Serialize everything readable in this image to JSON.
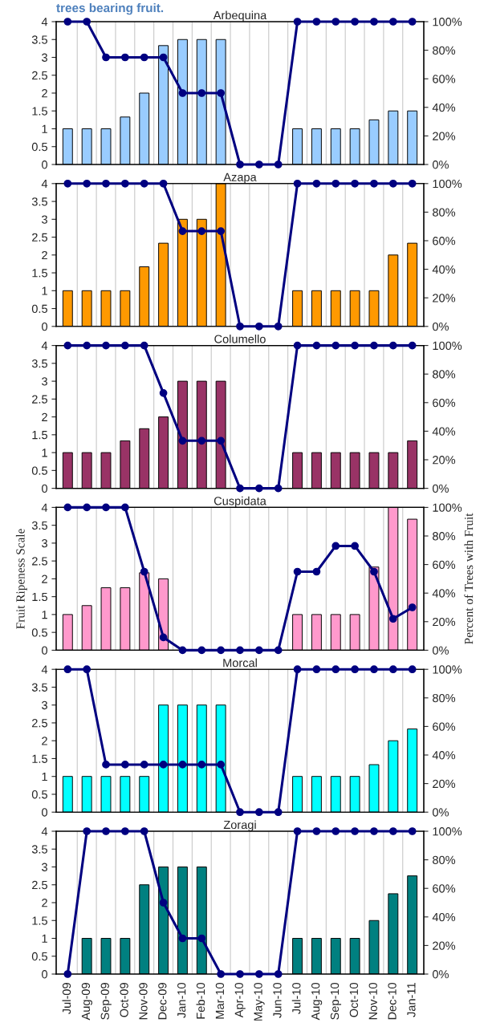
{
  "chart_data": [
    {
      "type": "bar",
      "title": "Arbequina",
      "annotations": [
        "trees bearing fruit."
      ],
      "tick_labels": "y",
      "grid": "x",
      "categories": [
        null,
        null,
        null,
        null,
        null,
        null,
        null,
        null,
        null,
        null,
        null,
        null,
        null,
        null,
        null,
        null,
        null,
        null,
        null
      ],
      "ylim": [
        0,
        4
      ],
      "yticks": [
        0,
        0.5,
        1,
        1.5,
        2,
        2.5,
        3,
        3.5,
        4
      ],
      "y2lim": [
        0,
        100
      ],
      "y2ticks": [
        {
          "value": 0,
          "label": "0%"
        },
        {
          "value": 20,
          "label": "20%"
        },
        {
          "value": 40,
          "label": "40%"
        },
        {
          "value": 60,
          "label": "60%"
        },
        {
          "value": 80,
          "label": "80%"
        },
        {
          "value": 100,
          "label": "100%"
        }
      ],
      "series": [
        {
          "type": "bar",
          "color": "#99ccff",
          "values": [
            1,
            1,
            1,
            1.33,
            2,
            3.33,
            3.5,
            3.5,
            3.5,
            null,
            null,
            null,
            1,
            1,
            1,
            1,
            1.25,
            1.5,
            1.5
          ]
        },
        {
          "type": "line",
          "axis": "y2",
          "color": "#000080",
          "marker": "circle",
          "line_style": "solid",
          "values": [
            100,
            100,
            75,
            75,
            75,
            75,
            50,
            50,
            50,
            0,
            0,
            0,
            100,
            100,
            100,
            100,
            100,
            100,
            100
          ]
        }
      ]
    },
    {
      "type": "bar",
      "title": "Azapa",
      "tick_labels": "y",
      "grid": "x",
      "categories": [
        null,
        null,
        null,
        null,
        null,
        null,
        null,
        null,
        null,
        null,
        null,
        null,
        null,
        null,
        null,
        null,
        null,
        null,
        null
      ],
      "ylim": [
        0,
        4
      ],
      "yticks": [
        0,
        0.5,
        1,
        1.5,
        2,
        2.5,
        3,
        3.5,
        4
      ],
      "y2lim": [
        0,
        100
      ],
      "y2ticks": [
        {
          "value": 0,
          "label": "0%"
        },
        {
          "value": 20,
          "label": "20%"
        },
        {
          "value": 40,
          "label": "40%"
        },
        {
          "value": 60,
          "label": "60%"
        },
        {
          "value": 80,
          "label": "80%"
        },
        {
          "value": 100,
          "label": "100%"
        }
      ],
      "series": [
        {
          "type": "bar",
          "color": "#ff9900",
          "values": [
            1,
            1,
            1,
            1,
            1.67,
            2.33,
            3,
            3,
            4,
            null,
            null,
            null,
            1,
            1,
            1,
            1,
            1,
            2,
            2.33
          ]
        },
        {
          "type": "line",
          "axis": "y2",
          "color": "#000080",
          "marker": "circle",
          "line_style": "solid",
          "values": [
            100,
            100,
            100,
            100,
            100,
            100,
            66.7,
            66.7,
            66.7,
            0,
            0,
            0,
            100,
            100,
            100,
            100,
            100,
            100,
            100
          ]
        }
      ]
    },
    {
      "type": "bar",
      "title": "Columello",
      "tick_labels": "y",
      "grid": "x",
      "categories": [
        null,
        null,
        null,
        null,
        null,
        null,
        null,
        null,
        null,
        null,
        null,
        null,
        null,
        null,
        null,
        null,
        null,
        null,
        null
      ],
      "ylim": [
        0,
        4
      ],
      "yticks": [
        0,
        0.5,
        1,
        1.5,
        2,
        2.5,
        3,
        3.5,
        4
      ],
      "y2lim": [
        0,
        100
      ],
      "y2ticks": [
        {
          "value": 0,
          "label": "0%"
        },
        {
          "value": 20,
          "label": "20%"
        },
        {
          "value": 40,
          "label": "40%"
        },
        {
          "value": 60,
          "label": "60%"
        },
        {
          "value": 80,
          "label": "80%"
        },
        {
          "value": 100,
          "label": "100%"
        }
      ],
      "series": [
        {
          "type": "bar",
          "color": "#993366",
          "values": [
            1,
            1,
            1,
            1.33,
            1.67,
            2,
            3,
            3,
            3,
            null,
            null,
            null,
            1,
            1,
            1,
            1,
            1,
            1,
            1.33
          ]
        },
        {
          "type": "line",
          "axis": "y2",
          "color": "#000080",
          "marker": "circle",
          "line_style": "solid",
          "values": [
            100,
            100,
            100,
            100,
            100,
            66.7,
            33.3,
            33.3,
            33.3,
            0,
            0,
            0,
            100,
            100,
            100,
            100,
            100,
            100,
            100
          ]
        }
      ]
    },
    {
      "type": "bar",
      "title": "Cuspidata",
      "ylabel": "Fruit Ripeness Scale",
      "y2label": "Percent of Trees with Fruit",
      "tick_labels": "y",
      "grid": "x",
      "categories": [
        null,
        null,
        null,
        null,
        null,
        null,
        null,
        null,
        null,
        null,
        null,
        null,
        null,
        null,
        null,
        null,
        null,
        null,
        null
      ],
      "ylim": [
        0,
        4
      ],
      "yticks": [
        0,
        0.5,
        1,
        1.5,
        2,
        2.5,
        3,
        3.5,
        4
      ],
      "y2lim": [
        0,
        100
      ],
      "y2ticks": [
        {
          "value": 0,
          "label": "0%"
        },
        {
          "value": 20,
          "label": "20%"
        },
        {
          "value": 40,
          "label": "40%"
        },
        {
          "value": 60,
          "label": "60%"
        },
        {
          "value": 80,
          "label": "80%"
        },
        {
          "value": 100,
          "label": "100%"
        }
      ],
      "series": [
        {
          "type": "bar",
          "color": "#ff99cc",
          "values": [
            1,
            1.25,
            1.75,
            1.75,
            2.17,
            2,
            null,
            null,
            null,
            null,
            null,
            null,
            1,
            1,
            1,
            1,
            2.33,
            4,
            3.67
          ]
        },
        {
          "type": "line",
          "axis": "y2",
          "color": "#000080",
          "marker": "circle",
          "line_style": "solid",
          "values": [
            100,
            100,
            100,
            100,
            55,
            9,
            0,
            0,
            0,
            0,
            0,
            0,
            55,
            55,
            73,
            73,
            55,
            22,
            30
          ]
        }
      ]
    },
    {
      "type": "bar",
      "title": "Morcal",
      "tick_labels": "y",
      "grid": "x",
      "categories": [
        null,
        null,
        null,
        null,
        null,
        null,
        null,
        null,
        null,
        null,
        null,
        null,
        null,
        null,
        null,
        null,
        null,
        null,
        null
      ],
      "ylim": [
        0,
        4
      ],
      "yticks": [
        0,
        0.5,
        1,
        1.5,
        2,
        2.5,
        3,
        3.5,
        4
      ],
      "y2lim": [
        0,
        100
      ],
      "y2ticks": [
        {
          "value": 0,
          "label": "0%"
        },
        {
          "value": 20,
          "label": "20%"
        },
        {
          "value": 40,
          "label": "40%"
        },
        {
          "value": 60,
          "label": "60%"
        },
        {
          "value": 80,
          "label": "80%"
        },
        {
          "value": 100,
          "label": "100%"
        }
      ],
      "series": [
        {
          "type": "bar",
          "color": "#00ffff",
          "values": [
            1,
            1,
            1,
            1,
            1,
            3,
            3,
            3,
            3,
            null,
            null,
            null,
            1,
            1,
            1,
            1,
            1.33,
            2,
            2.33
          ]
        },
        {
          "type": "line",
          "axis": "y2",
          "color": "#000080",
          "marker": "circle",
          "line_style": "solid",
          "values": [
            100,
            100,
            33.3,
            33.3,
            33.3,
            33.3,
            33.3,
            33.3,
            33.3,
            0,
            0,
            0,
            100,
            100,
            100,
            100,
            100,
            100,
            100
          ]
        }
      ]
    },
    {
      "type": "bar",
      "title": "Zoragi",
      "grid": "x",
      "categories": [
        "Jul-09",
        "Aug-09",
        "Sep-09",
        "Oct-09",
        "Nov-09",
        "Dec-09",
        "Jan-10",
        "Feb-10",
        "Mar-10",
        "Apr-10",
        "May-10",
        "Jun-10",
        "Jul-10",
        "Aug-10",
        "Sep-10",
        "Oct-10",
        "Nov-10",
        "Dec-10",
        "Jan-11"
      ],
      "ylim": [
        0,
        4
      ],
      "yticks": [
        0,
        0.5,
        1,
        1.5,
        2,
        2.5,
        3,
        3.5,
        4
      ],
      "y2lim": [
        0,
        100
      ],
      "y2ticks": [
        {
          "value": 0,
          "label": "0%"
        },
        {
          "value": 20,
          "label": "20%"
        },
        {
          "value": 40,
          "label": "40%"
        },
        {
          "value": 60,
          "label": "60%"
        },
        {
          "value": 80,
          "label": "80%"
        },
        {
          "value": 100,
          "label": "100%"
        }
      ],
      "series": [
        {
          "type": "bar",
          "color": "#008080",
          "values": [
            null,
            1,
            1,
            1,
            2.5,
            3,
            3,
            3,
            null,
            null,
            null,
            null,
            1,
            1,
            1,
            1,
            1.5,
            2.25,
            2.75
          ]
        },
        {
          "type": "line",
          "axis": "y2",
          "color": "#000080",
          "marker": "circle",
          "line_style": "solid",
          "values": [
            0,
            100,
            100,
            100,
            100,
            50,
            25,
            25,
            0,
            0,
            0,
            0,
            100,
            100,
            100,
            100,
            100,
            100,
            100
          ]
        }
      ]
    }
  ]
}
